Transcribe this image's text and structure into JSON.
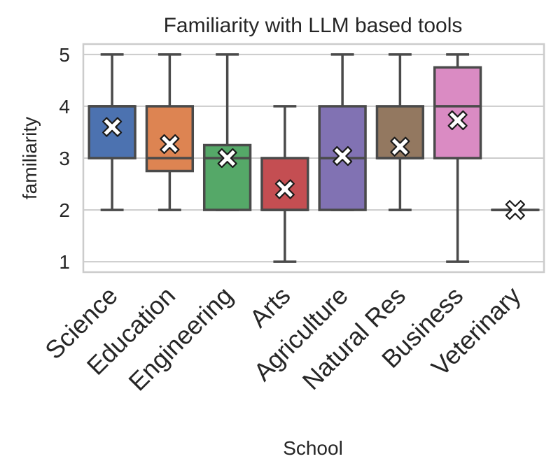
{
  "chart_data": {
    "type": "box",
    "title": "Familiarity with LLM based tools",
    "xlabel": "School",
    "ylabel": "familiarity",
    "ylim": [
      0.8,
      5.2
    ],
    "yticks": [
      1,
      2,
      3,
      4,
      5
    ],
    "grid": "horizontal",
    "categories": [
      "Science",
      "Education",
      "Engineering",
      "Arts",
      "Agriculture",
      "Natural Res",
      "Business",
      "Veterinary"
    ],
    "colors": [
      "#4c72b0",
      "#dd8452",
      "#55a868",
      "#c44e52",
      "#8172b3",
      "#937860",
      "#da8bc3",
      "#8c8c8c"
    ],
    "boxes": [
      {
        "whisker_low": 2,
        "q1": 3,
        "median": 4,
        "q3": 4,
        "whisker_high": 5,
        "mean": 3.6
      },
      {
        "whisker_low": 2,
        "q1": 2.75,
        "median": 3,
        "q3": 4,
        "whisker_high": 5,
        "mean": 3.27
      },
      {
        "whisker_low": 2,
        "q1": 2,
        "median": 3,
        "q3": 3.25,
        "whisker_high": 5,
        "mean": 3.0
      },
      {
        "whisker_low": 1,
        "q1": 2,
        "median": 2,
        "q3": 3,
        "whisker_high": 4,
        "mean": 2.4
      },
      {
        "whisker_low": 2,
        "q1": 2,
        "median": 3,
        "q3": 4,
        "whisker_high": 5,
        "mean": 3.04
      },
      {
        "whisker_low": 2,
        "q1": 3,
        "median": 3,
        "q3": 4,
        "whisker_high": 5,
        "mean": 3.22
      },
      {
        "whisker_low": 1,
        "q1": 3,
        "median": 4,
        "q3": 4.75,
        "whisker_high": 5,
        "mean": 3.73
      },
      {
        "whisker_low": 2,
        "q1": 2,
        "median": 2,
        "q3": 2,
        "whisker_high": 2,
        "mean": 2.0
      }
    ],
    "mean_marker": "white X"
  }
}
